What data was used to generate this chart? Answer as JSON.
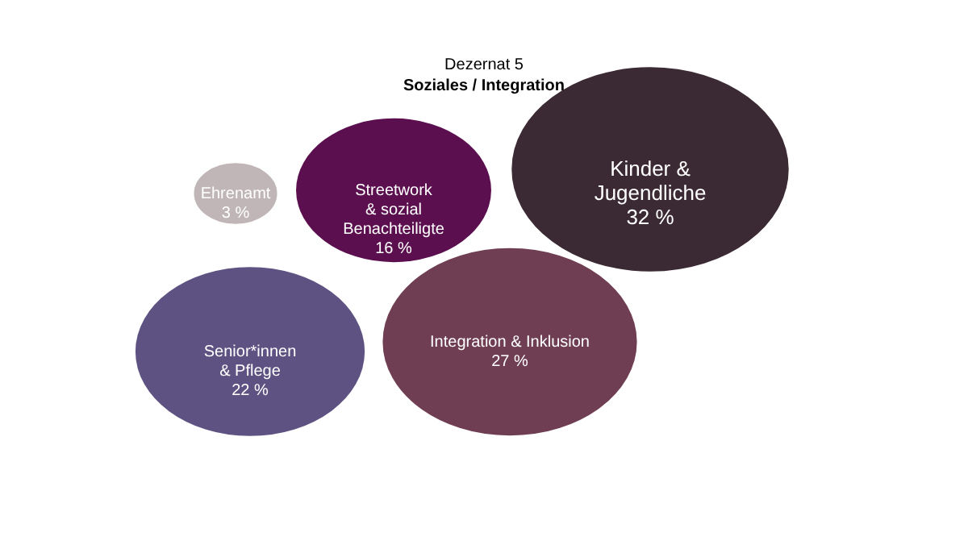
{
  "chart_data": {
    "type": "other",
    "title": "Dezernat 5",
    "subtitle": "Soziales / Integration",
    "categories": [
      "Ehrenamt",
      "Streetwork & sozial Benachteiligte",
      "Kinder & Jugendliche",
      "Senior*innen & Pflege",
      "Integration & Inklusion"
    ],
    "values": [
      3,
      16,
      32,
      22,
      27
    ],
    "value_labels": [
      "3 %",
      "16 %",
      "32 %",
      "22 %",
      "27 %"
    ],
    "colors": [
      "#c0b6b8",
      "#5c0f4f",
      "#3b2a33",
      "#5e5282",
      "#6f3e52"
    ]
  }
}
